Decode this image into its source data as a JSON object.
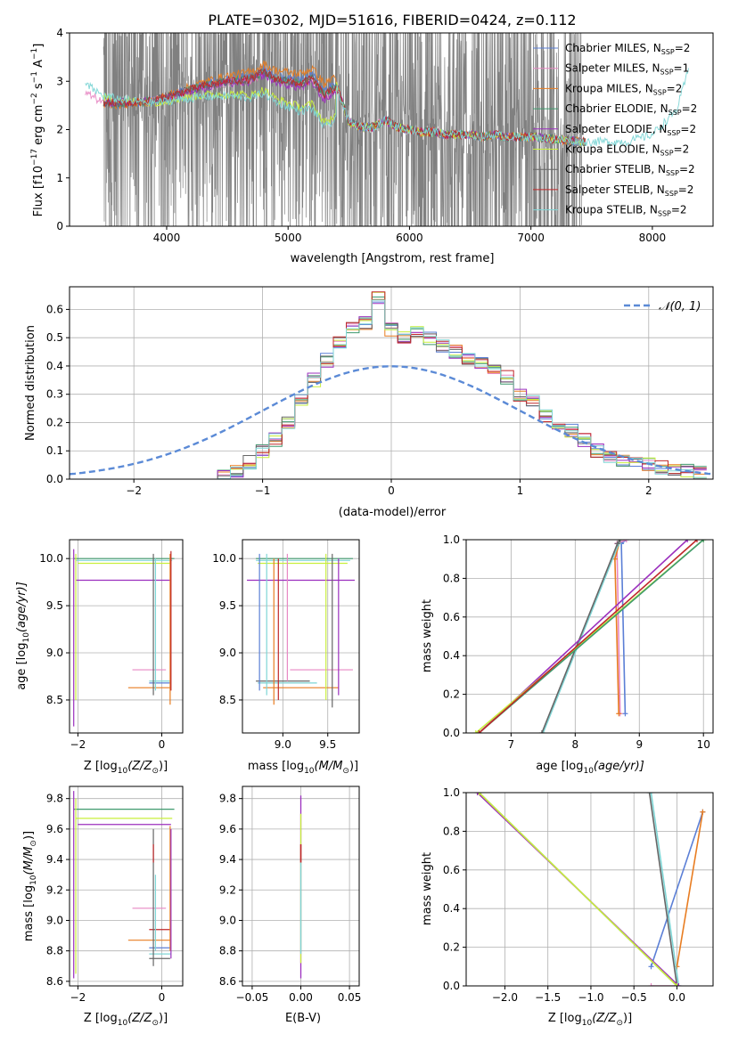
{
  "title": "PLATE=0302, MJD=51616, FIBERID=0424, z=0.112",
  "colors": {
    "spectrum": "#808080",
    "chabrier_miles": "#5b7fd6",
    "salpeter_miles": "#e888c4",
    "kroupa_miles": "#e87d22",
    "chabrier_elodie": "#3f9a6e",
    "salpeter_elodie": "#9b2fbe",
    "kroupa_elodie": "#c9ef3c",
    "chabrier_stelib": "#666666",
    "salpeter_stelib": "#c0282a",
    "kroupa_stelib": "#7fd6d6",
    "gaussian": "#5b8ad6",
    "grid": "#b0b0b0"
  },
  "legend1": [
    {
      "name": "Chabrier MILES",
      "n": "2"
    },
    {
      "name": "Salpeter MILES",
      "n": "1"
    },
    {
      "name": "Kroupa MILES",
      "n": "2"
    },
    {
      "name": "Chabrier ELODIE",
      "n": "2"
    },
    {
      "name": "Salpeter ELODIE",
      "n": "2"
    },
    {
      "name": "Kroupa ELODIE",
      "n": "2"
    },
    {
      "name": "Chabrier STELIB",
      "n": "2"
    },
    {
      "name": "Salpeter STELIB",
      "n": "2"
    },
    {
      "name": "Kroupa STELIB",
      "n": "2"
    }
  ],
  "chart_data": [
    {
      "id": "spectrum",
      "type": "line",
      "xlabel": "wavelength [Angstrom, rest frame]",
      "ylabel_pre": "Flux [f",
      "ylabel_post": "10",
      "ylabel_exp": "−17",
      "ylabel_units": " erg cm",
      "ylabel_e2": "−2",
      "ylabel_s": " s",
      "ylabel_e1": "−1",
      "ylabel_A": " A",
      "ylabel_e3": "−1",
      "ylabel_end": "]",
      "xlim": [
        3200,
        8500
      ],
      "ylim": [
        0,
        4
      ],
      "xticks": [
        4000,
        5000,
        6000,
        7000,
        8000
      ],
      "yticks": [
        0,
        1,
        2,
        3,
        4
      ],
      "data_range": [
        3480,
        7420
      ],
      "model_keypoints": {
        "x": [
          3200,
          3480,
          3700,
          3900,
          4100,
          4300,
          4500,
          4700,
          4800,
          4900,
          5000,
          5100,
          5200,
          5300,
          5400,
          5500,
          5600,
          5700,
          5800,
          5900,
          6000,
          6100,
          6200,
          6300,
          6400,
          6500,
          6600,
          6700,
          6800,
          7000,
          7200,
          7400,
          7600,
          7800,
          8000,
          8200,
          8300
        ],
        "y": [
          2.9,
          2.55,
          2.55,
          2.6,
          2.75,
          2.9,
          3.0,
          3.05,
          3.2,
          3.05,
          3.0,
          2.95,
          3.05,
          2.7,
          2.9,
          2.15,
          2.05,
          2.05,
          2.2,
          2.05,
          2.0,
          1.95,
          1.95,
          1.9,
          1.9,
          1.9,
          1.85,
          1.9,
          1.85,
          1.85,
          1.8,
          1.75,
          1.75,
          1.75,
          1.9,
          2.4,
          3.25
        ]
      }
    },
    {
      "id": "residuals",
      "type": "step",
      "xlabel": "(data-model)/error",
      "ylabel": "Normed distribution",
      "xlim": [
        -2.5,
        2.5
      ],
      "ylim": [
        0,
        0.68
      ],
      "xticks": [
        -2,
        -1,
        0,
        1,
        2
      ],
      "yticks": [
        0.0,
        0.1,
        0.2,
        0.3,
        0.4,
        0.5,
        0.6
      ],
      "legend": "𝒩(0, 1)",
      "bins": [
        -1.35,
        -1.25,
        -1.15,
        -1.05,
        -0.95,
        -0.85,
        -0.75,
        -0.65,
        -0.55,
        -0.45,
        -0.35,
        -0.25,
        -0.15,
        -0.05,
        0.05,
        0.15,
        0.25,
        0.35,
        0.45,
        0.55,
        0.65,
        0.75,
        0.85,
        0.95,
        1.05,
        1.15,
        1.25,
        1.35,
        1.45,
        1.55,
        1.65,
        1.75,
        1.85,
        1.95,
        2.05,
        2.15,
        2.25,
        2.35,
        2.45
      ],
      "hist": [
        0.01,
        0.03,
        0.06,
        0.1,
        0.14,
        0.2,
        0.28,
        0.35,
        0.42,
        0.48,
        0.53,
        0.55,
        0.64,
        0.53,
        0.5,
        0.52,
        0.5,
        0.47,
        0.45,
        0.43,
        0.41,
        0.38,
        0.36,
        0.3,
        0.28,
        0.22,
        0.19,
        0.17,
        0.14,
        0.1,
        0.08,
        0.07,
        0.06,
        0.05,
        0.04,
        0.03,
        0.03,
        0.02
      ]
    },
    {
      "id": "age_vs_Z",
      "type": "errorbar",
      "xlabel": "Z [log",
      "xlabel_sub": "10",
      "xlabel_end": "(Z/Z",
      "xlabel_sun": "⊙",
      "xlabel_close": ")]",
      "ylabel": "age  [log",
      "ylabel_sub": "10",
      "ylabel_end": "(age/yr)]",
      "xlim": [
        -2.2,
        0.5
      ],
      "ylim": [
        8.15,
        10.2
      ],
      "xticks": [
        -2,
        0
      ],
      "yticks": [
        8.5,
        9.0,
        9.5,
        10.0
      ]
    },
    {
      "id": "age_vs_mass",
      "type": "errorbar",
      "xlabel": "mass [log",
      "xlabel_sub": "10",
      "xlabel_end": "(M/M",
      "xlabel_sun": "⊙",
      "xlabel_close": ")]",
      "xlim": [
        8.55,
        9.85
      ],
      "ylim": [
        8.15,
        10.2
      ],
      "xticks": [
        9.0,
        9.5
      ],
      "yticks": [
        8.5,
        9.0,
        9.5,
        10.0
      ]
    },
    {
      "id": "cumulative_age",
      "type": "line",
      "xlabel": "age  [log",
      "xlabel_sub": "10",
      "xlabel_end": "(age/yr)]",
      "ylabel": "mass weight",
      "xlim": [
        6.3,
        10.15
      ],
      "ylim": [
        0,
        1
      ],
      "xticks": [
        7,
        8,
        9,
        10
      ],
      "yticks": [
        0.0,
        0.2,
        0.4,
        0.6,
        0.8,
        1.0
      ]
    },
    {
      "id": "mass_vs_Z",
      "type": "errorbar",
      "xlabel": "Z [log",
      "xlabel_sub": "10",
      "xlabel_end": "(Z/Z",
      "xlabel_sun": "⊙",
      "xlabel_close": ")]",
      "ylabel": "mass [log",
      "ylabel_sub": "10",
      "ylabel_end": "(M/M",
      "ylabel_sun": "⊙",
      "ylabel_close": ")]",
      "xlim": [
        -2.2,
        0.5
      ],
      "ylim": [
        8.57,
        9.88
      ],
      "xticks": [
        -2,
        0
      ],
      "yticks": [
        8.6,
        8.8,
        9.0,
        9.2,
        9.4,
        9.6,
        9.8
      ]
    },
    {
      "id": "mass_vs_ebv",
      "type": "errorbar",
      "xlabel": "E(B-V)",
      "xlim": [
        -0.06,
        0.06
      ],
      "ylim": [
        8.57,
        9.88
      ],
      "xticks": [
        -0.05,
        0.0,
        0.05
      ],
      "xticklabels": [
        "−0.05",
        "0.00",
        "0.05"
      ],
      "yticks": [
        8.6,
        8.8,
        9.0,
        9.2,
        9.4,
        9.6,
        9.8
      ]
    },
    {
      "id": "cumulative_Z",
      "type": "line",
      "xlabel": "Z [log",
      "xlabel_sub": "10",
      "xlabel_end": "(Z/Z",
      "xlabel_sun": "⊙",
      "xlabel_close": ")]",
      "ylabel": "mass weight",
      "xlim": [
        -2.45,
        0.42
      ],
      "ylim": [
        0,
        1
      ],
      "xticks": [
        -2.0,
        -1.5,
        -1.0,
        -0.5,
        0.0
      ],
      "xticklabels": [
        "−2.0",
        "−1.5",
        "−1.0",
        "−0.5",
        "0.0"
      ],
      "yticks": [
        0.0,
        0.2,
        0.4,
        0.6,
        0.8,
        1.0
      ]
    }
  ]
}
